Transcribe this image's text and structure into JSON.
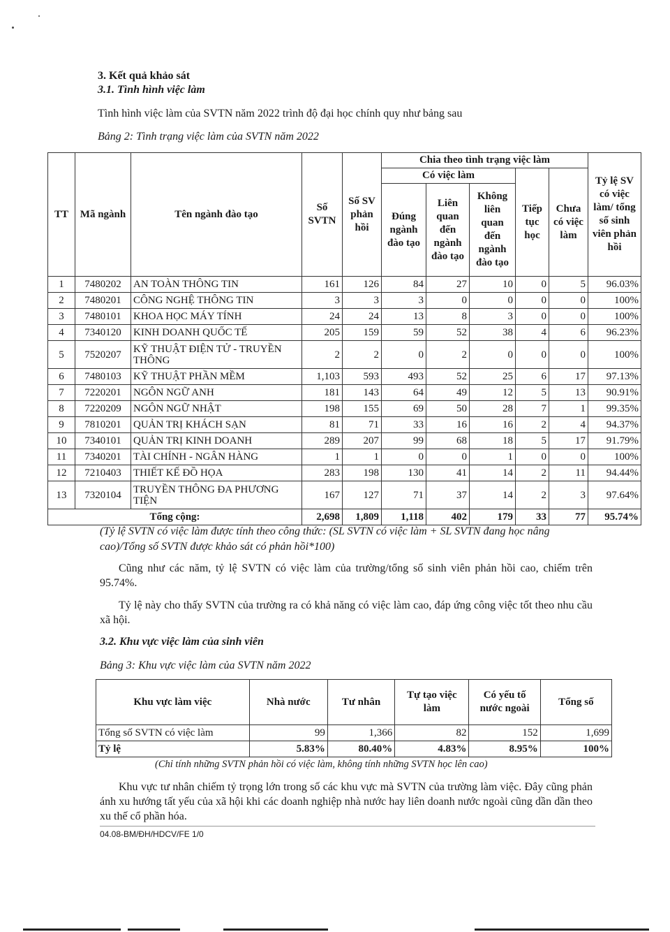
{
  "section_title": "3. Kết quả khảo sát",
  "subsection_1": "3.1. Tình hình việc làm",
  "intro": "Tình hình việc làm của SVTN năm 2022 trình độ đại học chính quy như bảng sau",
  "table2": {
    "caption": "Bảng 2: Tình trạng việc làm của SVTN năm 2022",
    "headers": {
      "tt": "TT",
      "ma": "Mã ngành",
      "ten": "Tên ngành đào tạo",
      "so_svtn": "Số SVTN",
      "so_sv_ph": "Số SV phản hồi",
      "chia": "Chia theo tình trạng việc làm",
      "co_viec": "Có việc làm",
      "dung": "Đúng ngành đào tạo",
      "lien": "Liên quan đến ngành đào tạo",
      "khong": "Không liên quan đến ngành đào tạo",
      "tiep": "Tiếp tục học",
      "chua": "Chưa có việc làm",
      "tyle": "Tỷ lệ SV có việc làm/ tổng số sinh viên phản hồi"
    },
    "rows": [
      [
        "1",
        "7480202",
        "AN TOÀN THÔNG TIN",
        "161",
        "126",
        "84",
        "27",
        "10",
        "0",
        "5",
        "96.03%"
      ],
      [
        "2",
        "7480201",
        "CÔNG NGHỆ THÔNG TIN",
        "3",
        "3",
        "3",
        "0",
        "0",
        "0",
        "0",
        "100%"
      ],
      [
        "3",
        "7480101",
        "KHOA HỌC MÁY TÍNH",
        "24",
        "24",
        "13",
        "8",
        "3",
        "0",
        "0",
        "100%"
      ],
      [
        "4",
        "7340120",
        "KINH DOANH QUỐC TẾ",
        "205",
        "159",
        "59",
        "52",
        "38",
        "4",
        "6",
        "96.23%"
      ],
      [
        "5",
        "7520207",
        "KỸ THUẬT ĐIỆN TỬ - TRUYỀN THÔNG",
        "2",
        "2",
        "0",
        "2",
        "0",
        "0",
        "0",
        "100%"
      ],
      [
        "6",
        "7480103",
        "KỸ THUẬT PHẦN MỀM",
        "1,103",
        "593",
        "493",
        "52",
        "25",
        "6",
        "17",
        "97.13%"
      ],
      [
        "7",
        "7220201",
        "NGÔN NGỮ ANH",
        "181",
        "143",
        "64",
        "49",
        "12",
        "5",
        "13",
        "90.91%"
      ],
      [
        "8",
        "7220209",
        "NGÔN NGỮ NHẬT",
        "198",
        "155",
        "69",
        "50",
        "28",
        "7",
        "1",
        "99.35%"
      ],
      [
        "9",
        "7810201",
        "QUẢN TRỊ KHÁCH SẠN",
        "81",
        "71",
        "33",
        "16",
        "16",
        "2",
        "4",
        "94.37%"
      ],
      [
        "10",
        "7340101",
        "QUẢN TRỊ KINH DOANH",
        "289",
        "207",
        "99",
        "68",
        "18",
        "5",
        "17",
        "91.79%"
      ],
      [
        "11",
        "7340201",
        "TÀI CHÍNH - NGÂN HÀNG",
        "1",
        "1",
        "0",
        "0",
        "1",
        "0",
        "0",
        "100%"
      ],
      [
        "12",
        "7210403",
        "THIẾT KẾ ĐỒ HỌA",
        "283",
        "198",
        "130",
        "41",
        "14",
        "2",
        "11",
        "94.44%"
      ],
      [
        "13",
        "7320104",
        "TRUYỀN THÔNG ĐA PHƯƠNG TIỆN",
        "167",
        "127",
        "71",
        "37",
        "14",
        "2",
        "3",
        "97.64%"
      ]
    ],
    "total": [
      "Tổng cộng:",
      "2,698",
      "1,809",
      "1,118",
      "402",
      "179",
      "33",
      "77",
      "95.74%"
    ],
    "note": "(Tỷ lệ SVTN có việc làm được tính theo công thức: (SL SVTN có việc làm + SL SVTN đang học nâng cao)/Tổng số SVTN được khảo sát có phản hồi*100)"
  },
  "para1": "Cũng như các năm, tỷ lệ SVTN có việc làm của trường/tổng số sinh viên phản hồi cao, chiếm trên 95.74%.",
  "para2": "Tỷ lệ này cho thấy SVTN của trường ra có khả năng có việc làm cao, đáp ứng công việc tốt theo nhu cầu xã hội.",
  "subsection_2": "3.2.  Khu vực việc làm của sinh viên",
  "table3": {
    "caption": "Bảng 3: Khu vực việc làm của SVTN năm 2022",
    "headers": [
      "Khu vực làm việc",
      "Nhà nước",
      "Tư nhân",
      "Tự tạo việc làm",
      "Có yếu tố nước ngoài",
      "Tổng số"
    ],
    "rows": [
      [
        "Tổng số SVTN có việc làm",
        "99",
        "1,366",
        "82",
        "152",
        "1,699"
      ],
      [
        "Tỷ lệ",
        "5.83%",
        "80.40%",
        "4.83%",
        "8.95%",
        "100%"
      ]
    ],
    "note": "(Chỉ tính những SVTN phản hồi có việc làm, không tính những SVTN học lên cao)"
  },
  "para3": "Khu vực tư nhân chiếm tỷ trọng lớn trong số các khu vực mà SVTN của trường làm việc. Đây cũng phản ánh xu hướng tất yếu của xã hội khi các doanh nghiệp nhà nước hay liên doanh nước ngoài cũng dần dần theo xu thế cổ phần hóa.",
  "footer_code": "04.08-BM/ĐH/HDCV/FE 1/0"
}
